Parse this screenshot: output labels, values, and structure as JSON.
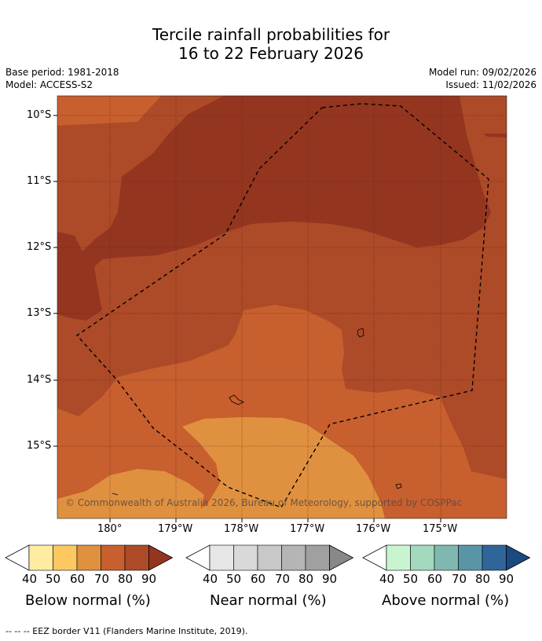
{
  "header": {
    "title_line1": "Tercile rainfall probabilities for",
    "title_line2": "16 to 22 February 2026",
    "base_period": "Base period: 1981-2018",
    "model": "Model: ACCESS-S2",
    "model_run": "Model run: 09/02/2026",
    "issued": "Issued: 11/02/2026"
  },
  "map": {
    "lat_labels": [
      "10°S",
      "11°S",
      "12°S",
      "13°S",
      "14°S",
      "15°S"
    ],
    "lon_labels": [
      "180°",
      "179°W",
      "178°W",
      "177°W",
      "176°W",
      "175°W"
    ],
    "copyright": "© Commonwealth of Australia 2026, Bureau of Meteorology, supported by COSPPac",
    "colors": {
      "below_70": "#c85f2e",
      "below_80": "#ad4a28",
      "below_90": "#943520",
      "below_60": "#e0913f",
      "ocean_border": "#000000"
    }
  },
  "colorbars": {
    "below": {
      "name": "Below normal (%)",
      "ticks": [
        "40",
        "50",
        "60",
        "70",
        "80",
        "90"
      ],
      "colors": [
        "#ffeca0",
        "#fdc862",
        "#e0913f",
        "#c85f2e",
        "#ad4a28",
        "#943520"
      ]
    },
    "near": {
      "name": "Near normal (%)",
      "ticks": [
        "40",
        "50",
        "60",
        "70",
        "80",
        "90"
      ],
      "colors": [
        "#e6e6e6",
        "#d9d9d9",
        "#c8c8c8",
        "#b5b5b5",
        "#a0a0a0",
        "#888888"
      ]
    },
    "above": {
      "name": "Above normal (%)",
      "ticks": [
        "40",
        "50",
        "60",
        "70",
        "80",
        "90"
      ],
      "colors": [
        "#c8f5d0",
        "#a3d9bd",
        "#7fb8b0",
        "#5a95a6",
        "#306599",
        "#1a4a80"
      ]
    }
  },
  "footnote": "--  --  -- EEZ border V11 (Flanders Marine Institute, 2019)."
}
